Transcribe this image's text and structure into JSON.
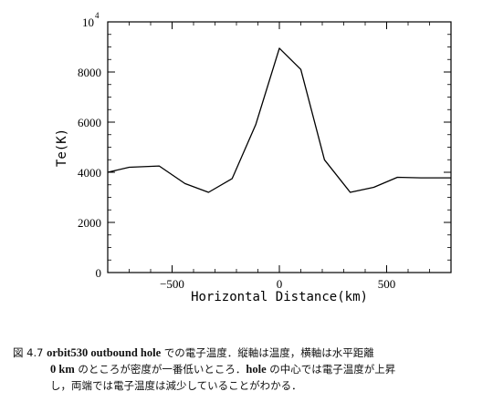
{
  "chart_data": {
    "type": "line",
    "xlabel": "Horizontal Distance(km)",
    "ylabel": "Te(K)",
    "xlim": [
      -800,
      800
    ],
    "ylim": [
      0,
      10000
    ],
    "x_ticks": [
      {
        "value": -500,
        "label": "−500"
      },
      {
        "value": 0,
        "label": "0"
      },
      {
        "value": 500,
        "label": "500"
      }
    ],
    "y_ticks": [
      {
        "value": 0,
        "label": "0"
      },
      {
        "value": 2000,
        "label": "2000"
      },
      {
        "value": 4000,
        "label": "4000"
      },
      {
        "value": 6000,
        "label": "6000"
      },
      {
        "value": 8000,
        "label": "8000"
      }
    ],
    "y_top_label": {
      "base": "10",
      "exp": "4"
    },
    "series": [
      {
        "x": [
          -800,
          -700,
          -560,
          -440,
          -330,
          -220,
          -110,
          0,
          100,
          210,
          330,
          440,
          550,
          660,
          800
        ],
        "y": [
          4000,
          4200,
          4250,
          3550,
          3200,
          3750,
          5900,
          8950,
          8100,
          4500,
          3200,
          3400,
          3800,
          3780,
          3780
        ]
      }
    ],
    "grid": false
  },
  "caption": {
    "figure_label": "図 4.7",
    "line1_bold": "orbit530 outbound hole",
    "line1_rest": " での電子温度．縦軸は温度，横軸は水平距離",
    "line2_bold": "0 km",
    "line2_rest": " のところが密度が一番低いところ．",
    "line2_bold2": "hole",
    "line2_rest2": " の中心では電子温度が上昇",
    "line3": "し，両端では電子温度は減少していることがわかる．"
  }
}
